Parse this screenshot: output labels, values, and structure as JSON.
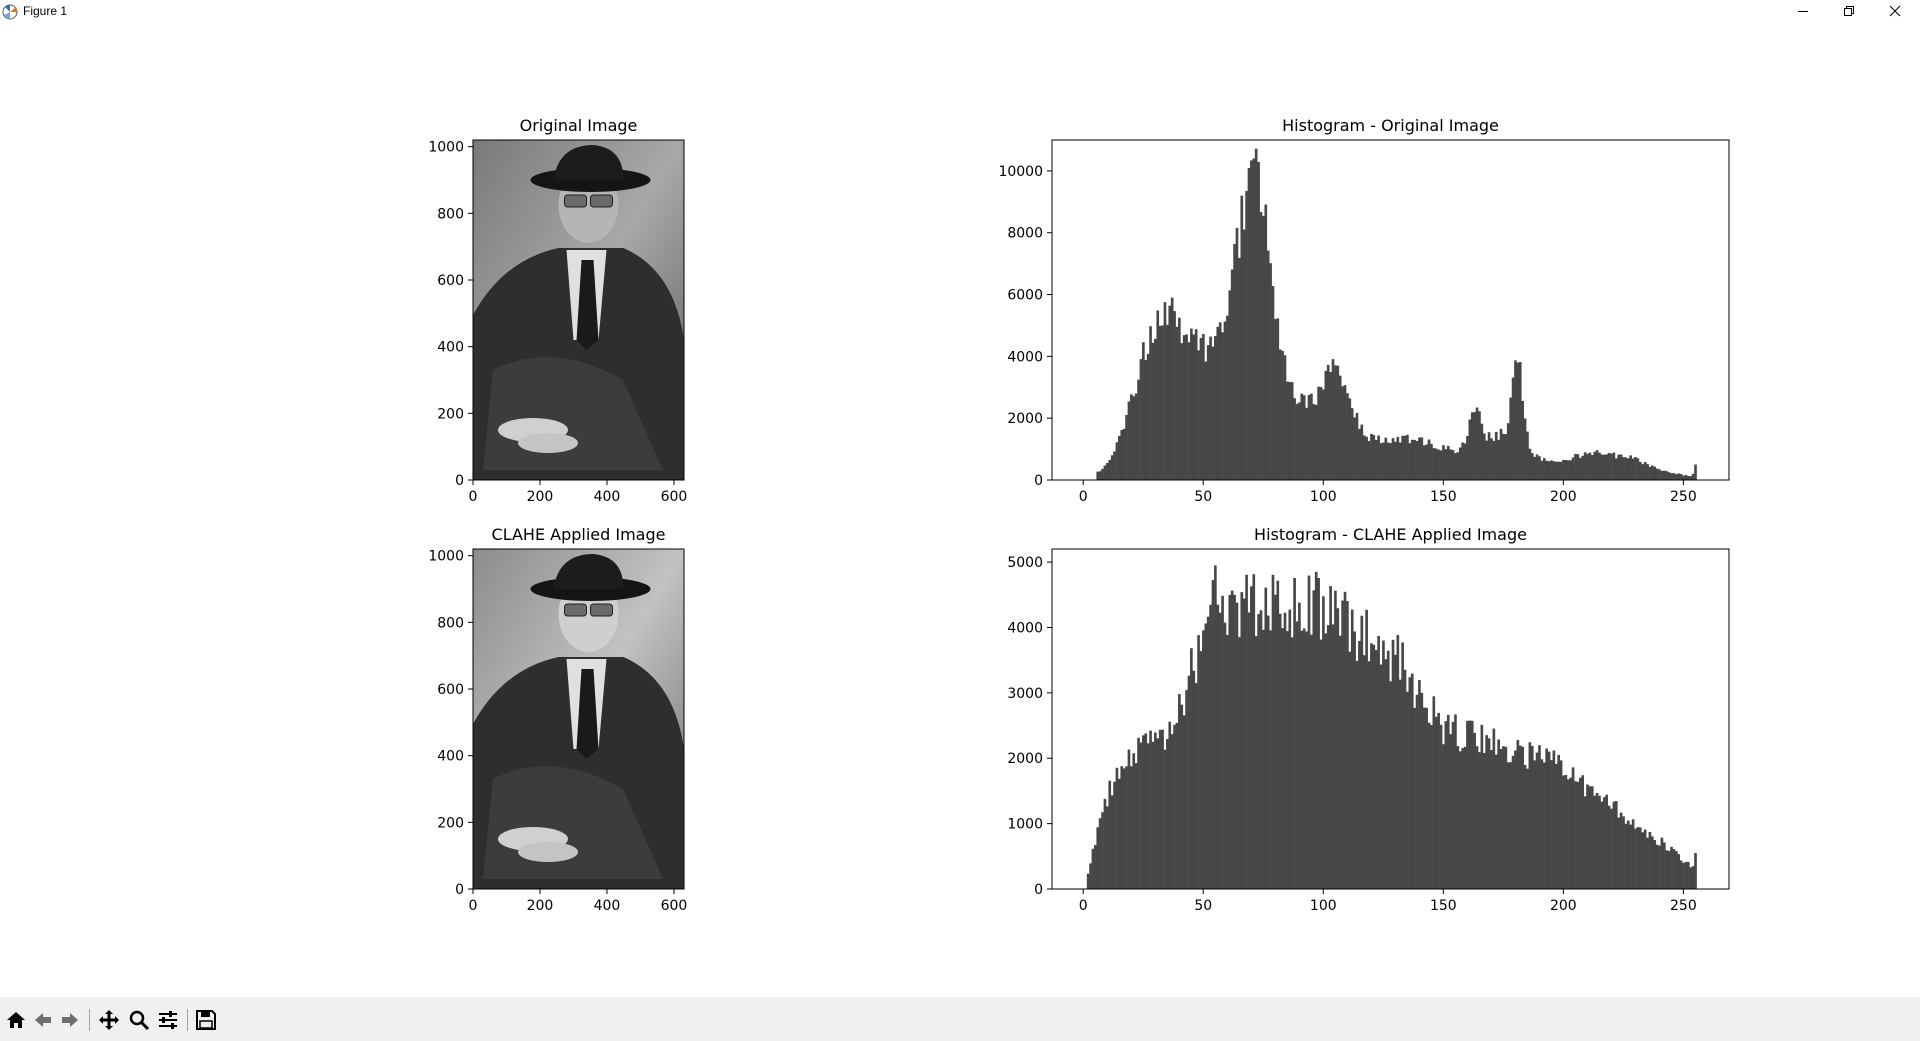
{
  "window": {
    "title": "Figure 1",
    "controls": [
      "minimize",
      "restore",
      "close"
    ]
  },
  "toolbar": {
    "buttons": [
      {
        "name": "home",
        "icon": "home-icon"
      },
      {
        "name": "back",
        "icon": "arrow-left-icon"
      },
      {
        "name": "forward",
        "icon": "arrow-right-icon"
      },
      {
        "name": "pan",
        "icon": "move-icon"
      },
      {
        "name": "zoom",
        "icon": "magnifier-icon"
      },
      {
        "name": "configure-subplots",
        "icon": "sliders-icon"
      },
      {
        "name": "save",
        "icon": "floppy-disk-icon"
      }
    ]
  },
  "colors": {
    "hist_bar": "#474747",
    "background": "#ffffff",
    "toolbar": "#f0f0f0"
  },
  "chart_data": [
    {
      "type": "image",
      "title": "Original Image",
      "xlim": [
        0,
        630
      ],
      "ylim": [
        1020,
        0
      ],
      "xticks": [
        0,
        200,
        400,
        600
      ],
      "yticks": [
        0,
        200,
        400,
        600,
        800,
        1000
      ]
    },
    {
      "type": "bar",
      "title": "Histogram - Original Image",
      "xlim": [
        -13,
        269
      ],
      "ylim": [
        0,
        11000
      ],
      "xticks": [
        0,
        50,
        100,
        150,
        200,
        250
      ],
      "yticks": [
        0,
        2000,
        4000,
        6000,
        8000,
        10000
      ],
      "bins": 256,
      "peaks": [
        {
          "x": 71,
          "y": 10400
        },
        {
          "x": 37,
          "y": 5900
        },
        {
          "x": 106,
          "y": 3700
        },
        {
          "x": 181,
          "y": 3800
        },
        {
          "x": 163,
          "y": 2200
        },
        {
          "x": 222,
          "y": 700
        },
        {
          "x": 255,
          "y": 500
        }
      ]
    },
    {
      "type": "image",
      "title": "CLAHE Applied Image",
      "xlim": [
        0,
        630
      ],
      "ylim": [
        1020,
        0
      ],
      "xticks": [
        0,
        200,
        400,
        600
      ],
      "yticks": [
        0,
        200,
        400,
        600,
        800,
        1000
      ]
    },
    {
      "type": "bar",
      "title": "Histogram - CLAHE Applied Image",
      "xlim": [
        -13,
        269
      ],
      "ylim": [
        0,
        5200
      ],
      "xticks": [
        0,
        50,
        100,
        150,
        200,
        250
      ],
      "yticks": [
        0,
        1000,
        2000,
        3000,
        4000,
        5000
      ],
      "bins": 256,
      "peaks": [
        {
          "x": 55,
          "y": 4950
        },
        {
          "x": 97,
          "y": 4850
        },
        {
          "x": 80,
          "y": 4500
        },
        {
          "x": 125,
          "y": 3800
        },
        {
          "x": 198,
          "y": 2050
        },
        {
          "x": 255,
          "y": 550
        }
      ]
    }
  ]
}
